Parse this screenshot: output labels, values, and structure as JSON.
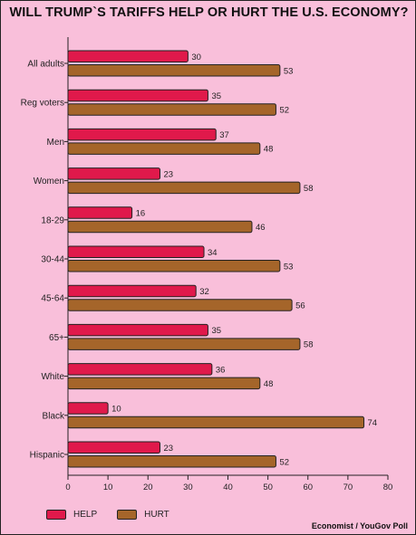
{
  "chart_data": {
    "type": "bar",
    "orientation": "horizontal",
    "title": "WILL TRUMP`S TARIFFS HELP OR HURT THE U.S. ECONOMY?",
    "source": "Economist / YouGov Poll",
    "categories": [
      "All adults",
      "Reg voters",
      "Men",
      "Women",
      "18-29",
      "30-44",
      "45-64",
      "65+",
      "White",
      "Black",
      "Hispanic"
    ],
    "series": [
      {
        "name": "HELP",
        "color": "#e0194b",
        "values": [
          30,
          35,
          37,
          23,
          16,
          34,
          32,
          35,
          36,
          10,
          23
        ]
      },
      {
        "name": "HURT",
        "color": "#a5652a",
        "values": [
          53,
          52,
          48,
          58,
          46,
          53,
          56,
          58,
          48,
          74,
          52
        ]
      }
    ],
    "xlim": [
      0,
      80
    ],
    "xticks": [
      "0",
      "10",
      "20",
      "30",
      "40",
      "50",
      "60",
      "70",
      "80"
    ],
    "grid": false,
    "legend_position": "bottom-left"
  }
}
